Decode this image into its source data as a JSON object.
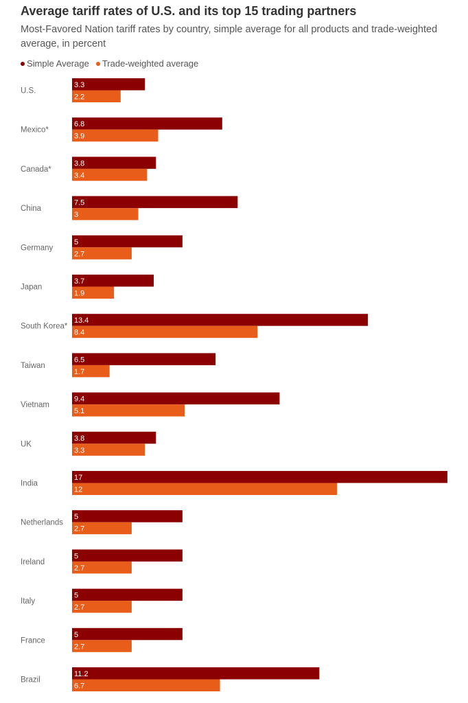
{
  "chart_data": {
    "type": "bar",
    "orientation": "horizontal",
    "title": "Average tariff rates of U.S. and its top 15 trading partners",
    "subtitle": "Most-Favored Nation tariff rates by country, simple average for all products and trade-weighted average, in percent",
    "categories": [
      "U.S.",
      "Mexico*",
      "Canada*",
      "China",
      "Germany",
      "Japan",
      "South Korea*",
      "Taiwan",
      "Vietnam",
      "UK",
      "India",
      "Netherlands",
      "Ireland",
      "Italy",
      "France",
      "Brazil"
    ],
    "series": [
      {
        "name": "Simple Average",
        "color": "#8b0000",
        "values": [
          3.3,
          6.8,
          3.8,
          7.5,
          5,
          3.7,
          13.4,
          6.5,
          9.4,
          3.8,
          17,
          5,
          5,
          5,
          5,
          11.2
        ]
      },
      {
        "name": "Trade-weighted average",
        "color": "#e85d1a",
        "values": [
          2.2,
          3.9,
          3.4,
          3,
          2.7,
          1.9,
          8.4,
          1.7,
          5.1,
          3.3,
          12,
          2.7,
          2.7,
          2.7,
          2.7,
          6.7
        ]
      }
    ],
    "xlim": [
      0,
      17
    ],
    "legend_position": "top-left",
    "grid": false
  }
}
